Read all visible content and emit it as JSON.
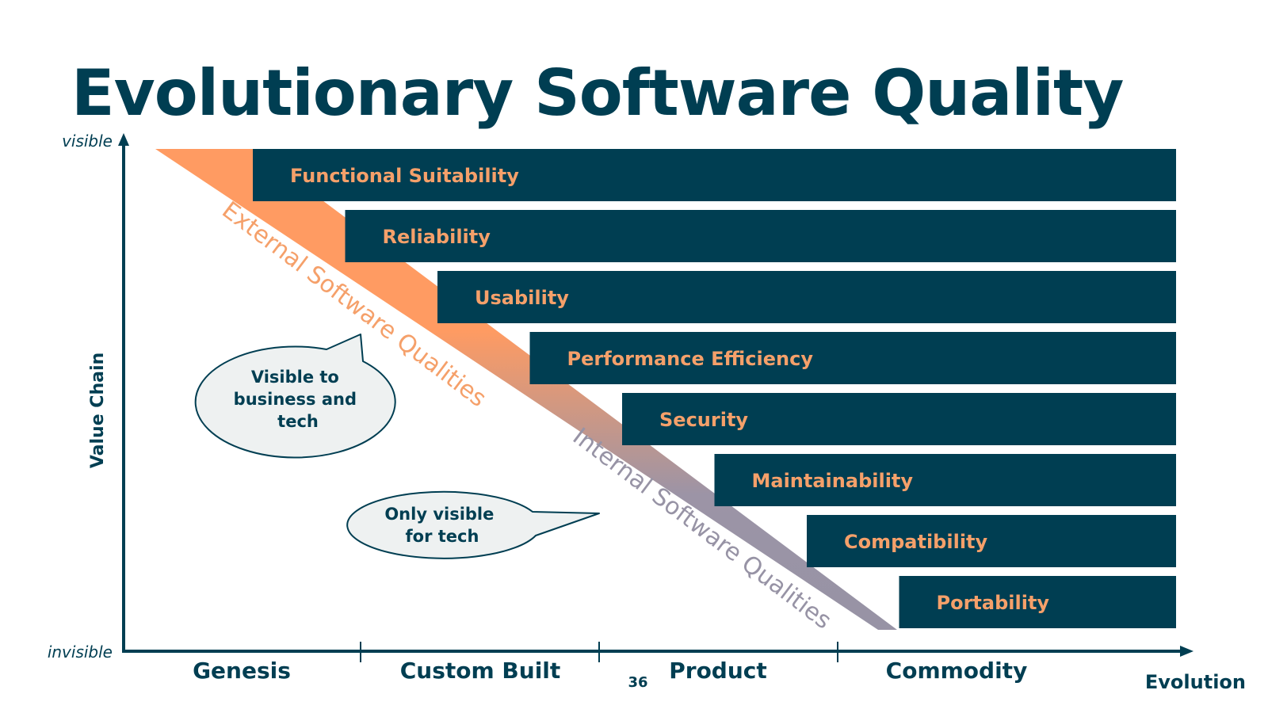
{
  "title": "Evolutionary Software Quality",
  "axes": {
    "y_label": "Value Chain",
    "y_top": "visible",
    "y_bottom": "invisible",
    "x_label": "Evolution",
    "x_stages": [
      "Genesis",
      "Custom Built",
      "Product",
      "Commodity"
    ]
  },
  "qualities": [
    "Functional Suitability",
    "Reliability",
    "Usability",
    "Performance Efficiency",
    "Security",
    "Maintainability",
    "Compatibility",
    "Portability"
  ],
  "diagonal_labels": {
    "external": "External Software Qualities",
    "internal": "Internal Software Qualities"
  },
  "callouts": {
    "business": [
      "Visible to",
      "business and",
      "tech"
    ],
    "tech": [
      "Only visible",
      "for tech"
    ]
  },
  "page_number": "36",
  "colors": {
    "navy": "#003e52",
    "orange": "#ff9b62",
    "label_orange": "#f5a06a",
    "internal_gray": "#9793a5",
    "bubble_fill": "#eef1f1"
  }
}
